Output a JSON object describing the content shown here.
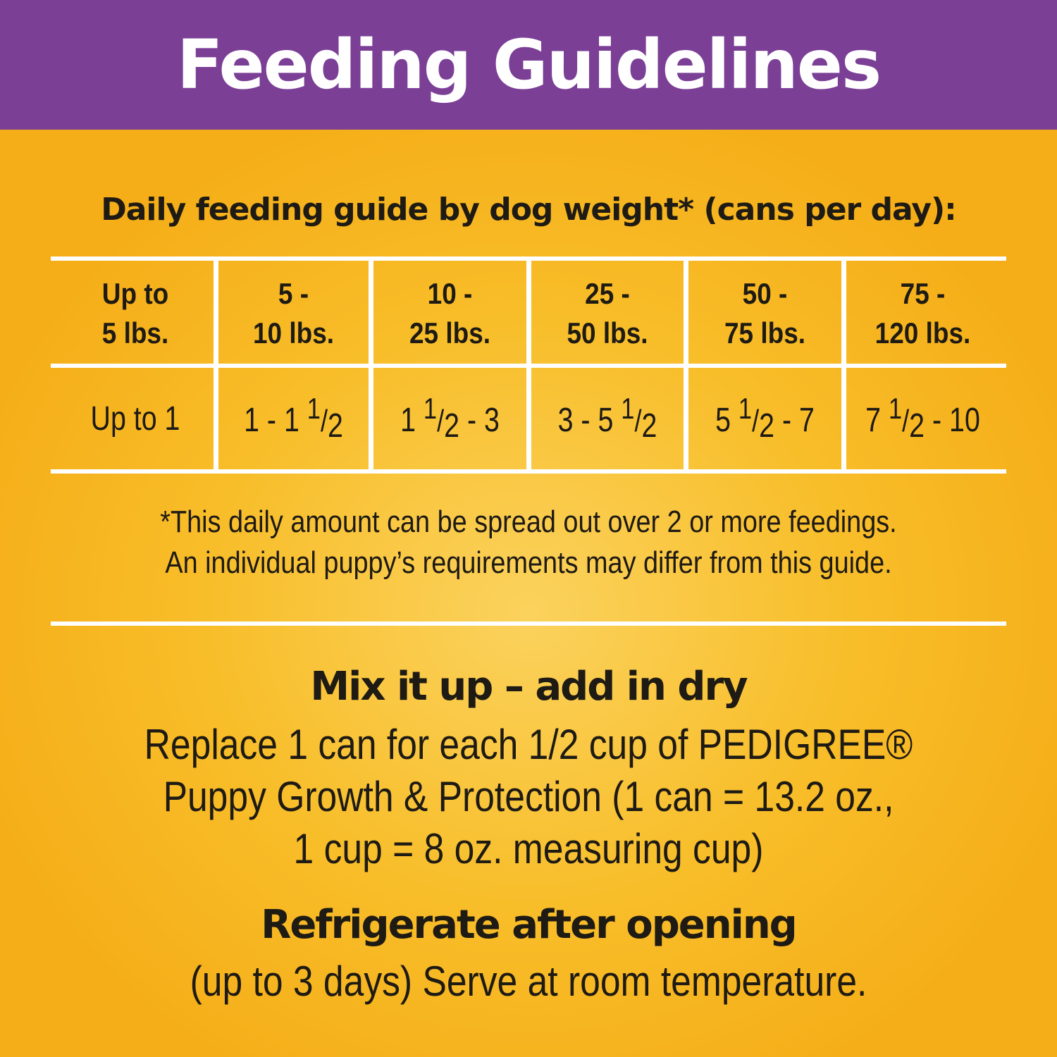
{
  "header": {
    "title": "Feeding Guidelines"
  },
  "subtitle": "Daily feeding guide by dog weight* (cans per day):",
  "table": {
    "headers": [
      {
        "line1": "Up to",
        "line2": "5 lbs."
      },
      {
        "line1": "5 -",
        "line2": "10 lbs."
      },
      {
        "line1": "10 -",
        "line2": "25 lbs."
      },
      {
        "line1": "25 -",
        "line2": "50 lbs."
      },
      {
        "line1": "50 -",
        "line2": "75 lbs."
      },
      {
        "line1": "75 -",
        "line2": "120 lbs."
      }
    ],
    "values": [
      {
        "pre": "Up to 1",
        "num": "",
        "den": "",
        "post": ""
      },
      {
        "pre": "1 - 1 ",
        "num": "1",
        "den": "2",
        "post": ""
      },
      {
        "pre": "1 ",
        "num": "1",
        "den": "2",
        "post": " - 3"
      },
      {
        "pre": "3 - 5 ",
        "num": "1",
        "den": "2",
        "post": ""
      },
      {
        "pre": "5 ",
        "num": "1",
        "den": "2",
        "post": " - 7"
      },
      {
        "pre": "7 ",
        "num": "1",
        "den": "2",
        "post": " - 10"
      }
    ]
  },
  "note": {
    "line1": "*This daily amount can be spread out over 2 or more feedings.",
    "line2": "An individual puppy’s requirements may differ from this guide."
  },
  "mix": {
    "title": "Mix it up – add in dry",
    "line1": "Replace 1 can for each 1/2 cup of PEDIGREE®",
    "line2": "Puppy Growth & Protection (1 can = 13.2 oz.,",
    "line3": "1 cup = 8 oz. measuring cup)"
  },
  "fridge": {
    "title": "Refrigerate after opening",
    "line1": "(up to 3 days) Serve at room temperature."
  },
  "colors": {
    "header_bg": "#7b3f96",
    "background": "#f8be2a",
    "rule": "#ffffff"
  }
}
